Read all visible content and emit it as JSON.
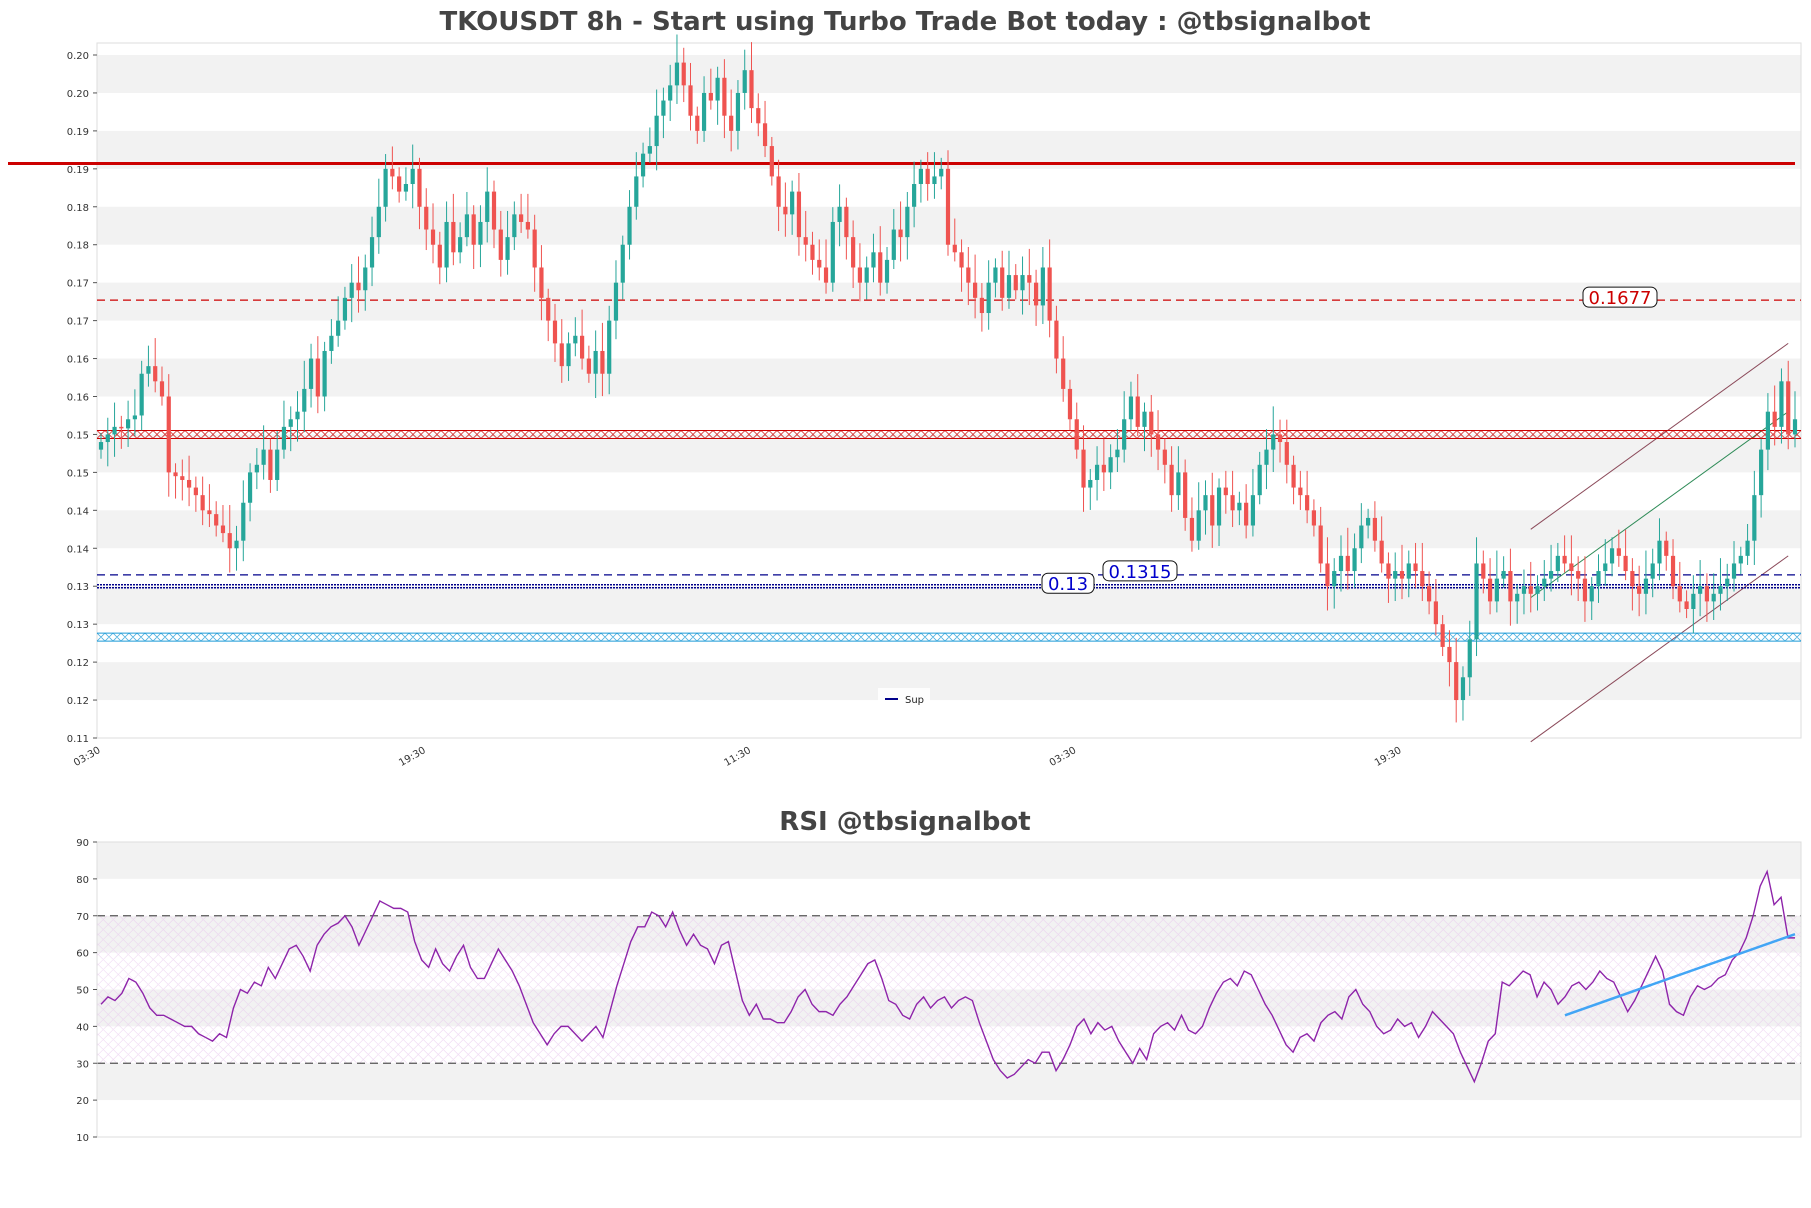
{
  "colors": {
    "up": "#26a69a",
    "down": "#ef5350",
    "resistance": "#cc0000",
    "support": "#00008b",
    "cyan_zone": "#1e9bd7",
    "rsi": "#8e24aa",
    "rsi_trend": "#42a5f5",
    "band": "#f2f2f2",
    "channel_upper": "#8b4a5a",
    "channel_mid": "#2e8b57"
  },
  "chart_data": [
    {
      "type": "candlestick",
      "title": "TKOUSDT 8h - Start using Turbo Trade Bot today : @tbsignalbot",
      "ylim": [
        0.11,
        0.2
      ],
      "y_tick_labels": [
        "0.20",
        "0.20",
        "0.19",
        "0.19",
        "0.18",
        "0.18",
        "0.17",
        "0.17",
        "0.16",
        "0.16",
        "0.15",
        "0.15",
        "0.14",
        "0.14",
        "0.13",
        "0.13",
        "0.12",
        "0.12",
        "0.11"
      ],
      "x_tick_labels": [
        "03:30",
        "19:30",
        "11:30",
        "03:30",
        "19:30"
      ],
      "x_tick_index": [
        0,
        48,
        96,
        144,
        192
      ],
      "levels": [
        {
          "value": 0.1857,
          "style": "solid",
          "color": "resistance",
          "label": ""
        },
        {
          "value": 0.1677,
          "style": "dashed",
          "color": "resistance",
          "label": "0.1677"
        },
        {
          "value": 0.15,
          "style": "zigzag",
          "color": "resistance",
          "label": ""
        },
        {
          "value": 0.1315,
          "style": "dashed",
          "color": "support",
          "label": "0.1315"
        },
        {
          "value": 0.13,
          "style": "dotted",
          "color": "support",
          "label": "0.13"
        },
        {
          "value": 0.1233,
          "style": "zigzag",
          "color": "cyan_zone",
          "label": ""
        }
      ],
      "legend": [
        {
          "name": "Sup",
          "color": "support"
        }
      ],
      "close": [
        0.149,
        0.15,
        0.151,
        0.1508,
        0.152,
        0.1525,
        0.158,
        0.159,
        0.157,
        0.155,
        0.145,
        0.1445,
        0.144,
        0.143,
        0.142,
        0.14,
        0.1395,
        0.138,
        0.137,
        0.135,
        0.136,
        0.141,
        0.145,
        0.146,
        0.148,
        0.144,
        0.148,
        0.151,
        0.152,
        0.153,
        0.156,
        0.16,
        0.155,
        0.161,
        0.163,
        0.165,
        0.168,
        0.17,
        0.169,
        0.172,
        0.176,
        0.18,
        0.185,
        0.184,
        0.182,
        0.183,
        0.185,
        0.18,
        0.177,
        0.175,
        0.172,
        0.178,
        0.174,
        0.176,
        0.179,
        0.175,
        0.178,
        0.182,
        0.177,
        0.173,
        0.176,
        0.179,
        0.178,
        0.177,
        0.172,
        0.168,
        0.165,
        0.162,
        0.159,
        0.162,
        0.163,
        0.16,
        0.158,
        0.161,
        0.158,
        0.165,
        0.17,
        0.175,
        0.18,
        0.184,
        0.187,
        0.188,
        0.192,
        0.194,
        0.196,
        0.199,
        0.196,
        0.192,
        0.19,
        0.195,
        0.194,
        0.197,
        0.192,
        0.19,
        0.195,
        0.198,
        0.193,
        0.191,
        0.188,
        0.184,
        0.18,
        0.179,
        0.182,
        0.176,
        0.175,
        0.173,
        0.172,
        0.17,
        0.178,
        0.18,
        0.176,
        0.172,
        0.17,
        0.172,
        0.174,
        0.17,
        0.173,
        0.177,
        0.176,
        0.18,
        0.183,
        0.185,
        0.183,
        0.184,
        0.185,
        0.175,
        0.174,
        0.172,
        0.17,
        0.168,
        0.166,
        0.17,
        0.172,
        0.168,
        0.171,
        0.169,
        0.171,
        0.17,
        0.167,
        0.172,
        0.165,
        0.16,
        0.156,
        0.152,
        0.148,
        0.143,
        0.144,
        0.146,
        0.145,
        0.147,
        0.148,
        0.152,
        0.155,
        0.151,
        0.153,
        0.15,
        0.148,
        0.146,
        0.142,
        0.145,
        0.139,
        0.136,
        0.14,
        0.142,
        0.138,
        0.143,
        0.142,
        0.14,
        0.141,
        0.138,
        0.142,
        0.146,
        0.148,
        0.15,
        0.149,
        0.146,
        0.143,
        0.142,
        0.14,
        0.138,
        0.133,
        0.13,
        0.132,
        0.134,
        0.132,
        0.135,
        0.138,
        0.139,
        0.136,
        0.133,
        0.131,
        0.132,
        0.131,
        0.133,
        0.132,
        0.13,
        0.128,
        0.125,
        0.122,
        0.12,
        0.115,
        0.118,
        0.123,
        0.133,
        0.131,
        0.128,
        0.131,
        0.132,
        0.128,
        0.129,
        0.13,
        0.129,
        0.13,
        0.131,
        0.132,
        0.134,
        0.133,
        0.132,
        0.131,
        0.128,
        0.13,
        0.132,
        0.133,
        0.135,
        0.134,
        0.132,
        0.13,
        0.129,
        0.131,
        0.133,
        0.136,
        0.134,
        0.13,
        0.128,
        0.127,
        0.129,
        0.13,
        0.128,
        0.129,
        0.13,
        0.131,
        0.133,
        0.134,
        0.136,
        0.142,
        0.148,
        0.153,
        0.151,
        0.157,
        0.15,
        0.152
      ]
    },
    {
      "type": "line",
      "title": "RSI @tbsignalbot",
      "ylim": [
        10,
        90
      ],
      "y_tick_labels": [
        "90",
        "80",
        "70",
        "60",
        "50",
        "40",
        "30",
        "20",
        "10"
      ],
      "thresholds": [
        70,
        30
      ],
      "series": [
        {
          "values": [
            46,
            48,
            47,
            49,
            53,
            52,
            49,
            45,
            43,
            43,
            42,
            41,
            40,
            40,
            38,
            37,
            36,
            38,
            37,
            45,
            50,
            49,
            52,
            51,
            56,
            53,
            57,
            61,
            62,
            59,
            55,
            62,
            65,
            67,
            68,
            70,
            67,
            62,
            66,
            70,
            74,
            73,
            72,
            72,
            71,
            63,
            58,
            56,
            61,
            57,
            55,
            59,
            62,
            56,
            53,
            53,
            57,
            61,
            58,
            55,
            51,
            46,
            41,
            38,
            35,
            38,
            40,
            40,
            38,
            36,
            38,
            40,
            37,
            44,
            51,
            57,
            63,
            67,
            67,
            71,
            70,
            67,
            71,
            66,
            62,
            65,
            62,
            61,
            57,
            62,
            63,
            55,
            47,
            43,
            46,
            42,
            42,
            41,
            41,
            44,
            48,
            50,
            46,
            44,
            44,
            43,
            46,
            48,
            51,
            54,
            57,
            58,
            53,
            47,
            46,
            43,
            42,
            46,
            48,
            45,
            47,
            48,
            45,
            47,
            48,
            47,
            41,
            36,
            31,
            28,
            26,
            27,
            29,
            31,
            30,
            33,
            33,
            28,
            31,
            35,
            40,
            42,
            38,
            41,
            39,
            40,
            36,
            33,
            30,
            34,
            31,
            38,
            40,
            41,
            39,
            43,
            39,
            38,
            40,
            45,
            49,
            52,
            53,
            51,
            55,
            54,
            50,
            46,
            43,
            39,
            35,
            33,
            37,
            38,
            36,
            41,
            43,
            44,
            42,
            48,
            50,
            46,
            44,
            40,
            38,
            39,
            42,
            40,
            41,
            37,
            40,
            44,
            42,
            40,
            38,
            33,
            29,
            25,
            30,
            36,
            38,
            52,
            51,
            53,
            55,
            54,
            48,
            52,
            50,
            46,
            48,
            51,
            52,
            50,
            52,
            55,
            53,
            52,
            48,
            44,
            47,
            51,
            55,
            59,
            55,
            46,
            44,
            43,
            48,
            51,
            50,
            51,
            53,
            54,
            58,
            60,
            64,
            70,
            78,
            82,
            73,
            75,
            64,
            64
          ]
        },
        {
          "name": "",
          "values": [
            43,
            65
          ]
        }
      ]
    }
  ]
}
